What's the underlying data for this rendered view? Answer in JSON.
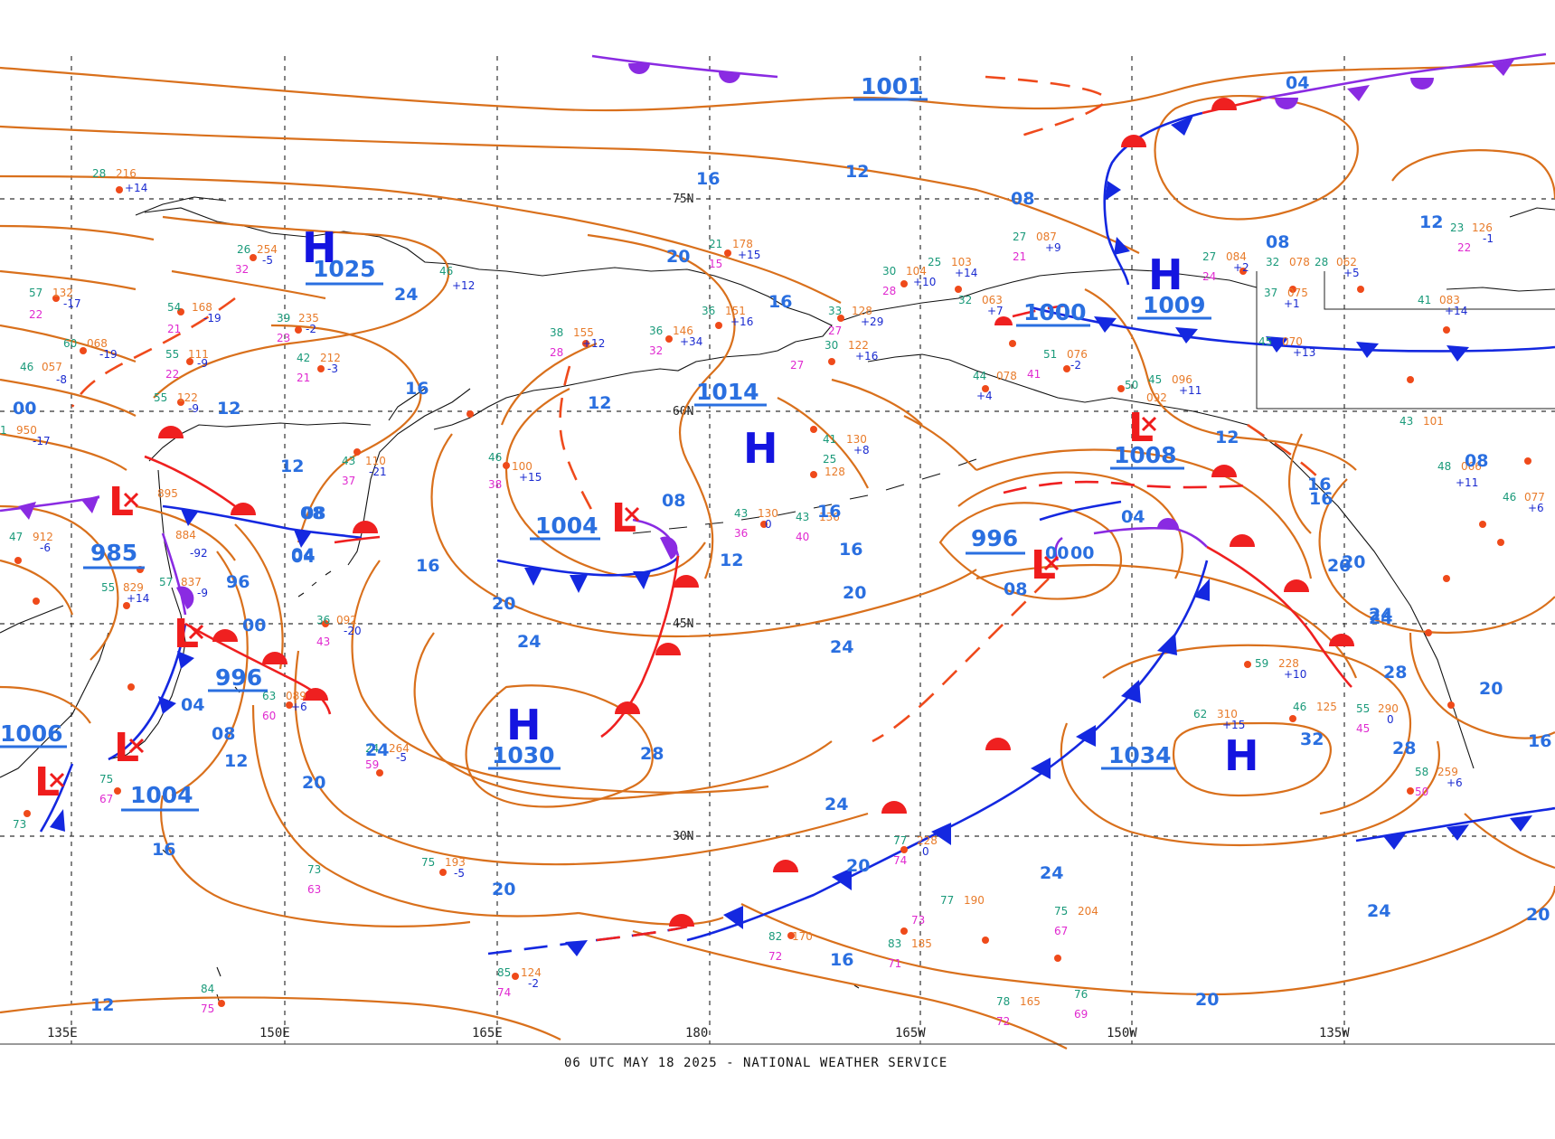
{
  "footer": "06 UTC MAY 18 2025 - NATIONAL WEATHER SERVICE",
  "colors": {
    "isobar": "#d9701c",
    "isobar_label": "#2a6fe0",
    "high_symbol": "#1414e0",
    "low_symbol": "#ef1c1c",
    "cold_front": "#1428e0",
    "warm_front": "#ef2020",
    "occluded_front": "#8a2be2",
    "grid": "#333333"
  },
  "latitude_labels": [
    "75N",
    "60N",
    "45N",
    "30N"
  ],
  "longitude_labels": [
    "135E",
    "150E",
    "165E",
    "180",
    "165W",
    "150W",
    "135W"
  ],
  "highs": [
    {
      "symbol": "H",
      "value": "1030"
    },
    {
      "symbol": "H",
      "value": "1014"
    },
    {
      "symbol": "H",
      "value": "1034"
    },
    {
      "symbol": "H",
      "value": "1009"
    },
    {
      "symbol": "H",
      "value": "1025"
    }
  ],
  "lows": [
    {
      "symbol": "L",
      "value": "1004"
    },
    {
      "symbol": "L",
      "value": "996"
    },
    {
      "symbol": "L",
      "value": "1008"
    },
    {
      "symbol": "L",
      "value": "985"
    },
    {
      "symbol": "L",
      "value": "996"
    },
    {
      "symbol": "L",
      "value": "1006"
    },
    {
      "symbol": "L",
      "value": "1004"
    },
    {
      "symbol": "L",
      "value": "1000"
    }
  ],
  "pressure_values_misc": [
    "1001"
  ],
  "isobar_labels": [
    "04",
    "16",
    "12",
    "08",
    "20",
    "16",
    "12",
    "08",
    "24",
    "16",
    "00",
    "12",
    "08",
    "16",
    "12",
    "08",
    "04",
    "12",
    "16",
    "20",
    "24",
    "28",
    "20",
    "16",
    "24",
    "20",
    "24",
    "20",
    "16",
    "12",
    "08",
    "04",
    "00",
    "96",
    "00",
    "04",
    "08",
    "12",
    "16",
    "20",
    "24",
    "28",
    "32",
    "24",
    "20",
    "16",
    "20",
    "24",
    "28",
    "16",
    "20",
    "08",
    "04",
    "00",
    "24",
    "20",
    "12",
    "08",
    "12",
    "16",
    "20",
    "24"
  ],
  "station_samples": [
    {
      "t": "28",
      "p": "216",
      "d": "",
      "tend": "+14"
    },
    {
      "t": "26",
      "p": "254",
      "d": "32",
      "tend": "-5"
    },
    {
      "t": "57",
      "p": "132",
      "d": "22",
      "tend": "-17"
    },
    {
      "t": "54",
      "p": "168",
      "d": "21",
      "tend": "-19"
    },
    {
      "t": "60",
      "p": "068",
      "d": "",
      "tend": "-19"
    },
    {
      "t": "55",
      "p": "111",
      "d": "22",
      "tend": "-9"
    },
    {
      "t": "55",
      "p": "122",
      "d": "",
      "tend": "-9"
    },
    {
      "t": "42",
      "p": "212",
      "d": "21",
      "tend": "-3"
    },
    {
      "t": "39",
      "p": "235",
      "d": "23",
      "tend": "-2"
    },
    {
      "t": "43",
      "p": "110",
      "d": "37",
      "tend": "-21"
    },
    {
      "t": "46",
      "p": "",
      "d": "",
      "tend": "+12"
    },
    {
      "t": "38",
      "p": "155",
      "d": "28",
      "tend": "+12"
    },
    {
      "t": "36",
      "p": "146",
      "d": "32",
      "tend": "+34"
    },
    {
      "t": "36",
      "p": "151",
      "d": "",
      "tend": "+16"
    },
    {
      "t": "21",
      "p": "178",
      "d": "15",
      "tend": "+15"
    },
    {
      "t": "41",
      "p": "130",
      "d": "",
      "tend": "+8"
    },
    {
      "t": "25",
      "p": "128",
      "d": "",
      "tend": ""
    },
    {
      "t": "43",
      "p": "130",
      "d": "36",
      "tend": "0"
    },
    {
      "t": "43",
      "p": "136",
      "d": "40",
      "tend": ""
    },
    {
      "t": "59",
      "p": "228",
      "d": "",
      "tend": "+10"
    },
    {
      "t": "62",
      "p": "310",
      "d": "",
      "tend": "+15"
    },
    {
      "t": "46",
      "p": "125",
      "d": "",
      "tend": ""
    },
    {
      "t": "55",
      "p": "290",
      "d": "45",
      "tend": "0"
    },
    {
      "t": "58",
      "p": "259",
      "d": "50",
      "tend": "+6"
    },
    {
      "t": "77",
      "p": "228",
      "d": "74",
      "tend": "0"
    },
    {
      "t": "77",
      "p": "190",
      "d": "73",
      "tend": ""
    },
    {
      "t": "75",
      "p": "204",
      "d": "67",
      "tend": ""
    },
    {
      "t": "83",
      "p": "185",
      "d": "71",
      "tend": ""
    },
    {
      "t": "82",
      "p": "170",
      "d": "72",
      "tend": ""
    },
    {
      "t": "78",
      "p": "165",
      "d": "72",
      "tend": ""
    },
    {
      "t": "76",
      "p": "",
      "d": "69",
      "tend": ""
    },
    {
      "t": "75",
      "p": "193",
      "d": "",
      "tend": "-5"
    },
    {
      "t": "85",
      "p": "124",
      "d": "74",
      "tend": "-2"
    },
    {
      "t": "84",
      "p": "",
      "d": "75",
      "tend": ""
    },
    {
      "t": "73",
      "p": "",
      "d": "63",
      "tend": ""
    },
    {
      "t": "24",
      "p": "264",
      "d": "59",
      "tend": "-5"
    },
    {
      "t": "36",
      "p": "092",
      "d": "43",
      "tend": "-20"
    },
    {
      "t": "63",
      "p": "089",
      "d": "60",
      "tend": "+6"
    },
    {
      "t": "46",
      "p": "100",
      "d": "38",
      "tend": "+15"
    },
    {
      "t": "45",
      "p": "070",
      "d": "",
      "tend": "+13"
    },
    {
      "t": "37",
      "p": "075",
      "d": "",
      "tend": "+1"
    },
    {
      "t": "41",
      "p": "083",
      "d": "",
      "tend": "+14"
    },
    {
      "t": "43",
      "p": "101",
      "d": "",
      "tend": ""
    },
    {
      "t": "48",
      "p": "066",
      "d": "",
      "tend": "+11"
    },
    {
      "t": "46",
      "p": "077",
      "d": "",
      "tend": "+6"
    },
    {
      "t": "32",
      "p": "063",
      "d": "",
      "tend": "+7"
    },
    {
      "t": "27",
      "p": "087",
      "d": "21",
      "tend": "+9"
    },
    {
      "t": "27",
      "p": "084",
      "d": "24",
      "tend": "+2"
    },
    {
      "t": "32",
      "p": "078",
      "d": "",
      "tend": ""
    },
    {
      "t": "28",
      "p": "062",
      "d": "",
      "tend": "+5"
    },
    {
      "t": "30",
      "p": "104",
      "d": "28",
      "tend": "+10"
    },
    {
      "t": "25",
      "p": "103",
      "d": "",
      "tend": "+14"
    },
    {
      "t": "33",
      "p": "128",
      "d": "27",
      "tend": "+29"
    },
    {
      "t": "30",
      "p": "122",
      "d": "27",
      "tend": "+16"
    },
    {
      "t": "44",
      "p": "078",
      "d": "",
      "tend": "+4"
    },
    {
      "t": "51",
      "p": "076",
      "d": "41",
      "tend": "-2"
    },
    {
      "t": "45",
      "p": "096",
      "d": "",
      "tend": "+11"
    },
    {
      "t": "50",
      "p": "092",
      "d": "",
      "tend": ""
    },
    {
      "t": "23",
      "p": "126",
      "d": "22",
      "tend": "-1"
    },
    {
      "t": "46",
      "p": "057",
      "d": "",
      "tend": "-8"
    },
    {
      "t": "47",
      "p": "912",
      "d": "",
      "tend": "-6"
    },
    {
      "t": "1",
      "p": "950",
      "d": "",
      "tend": "-17"
    },
    {
      "t": "55",
      "p": "829",
      "d": "",
      "tend": "+14"
    },
    {
      "t": "57",
      "p": "837",
      "d": "",
      "tend": "-9"
    },
    {
      "t": "",
      "p": "884",
      "d": "",
      "tend": "-92"
    },
    {
      "t": "",
      "p": "895",
      "d": "",
      "tend": ""
    },
    {
      "t": "75",
      "p": "",
      "d": "67",
      "tend": ""
    },
    {
      "t": "73",
      "p": "",
      "d": "",
      "tend": ""
    }
  ]
}
